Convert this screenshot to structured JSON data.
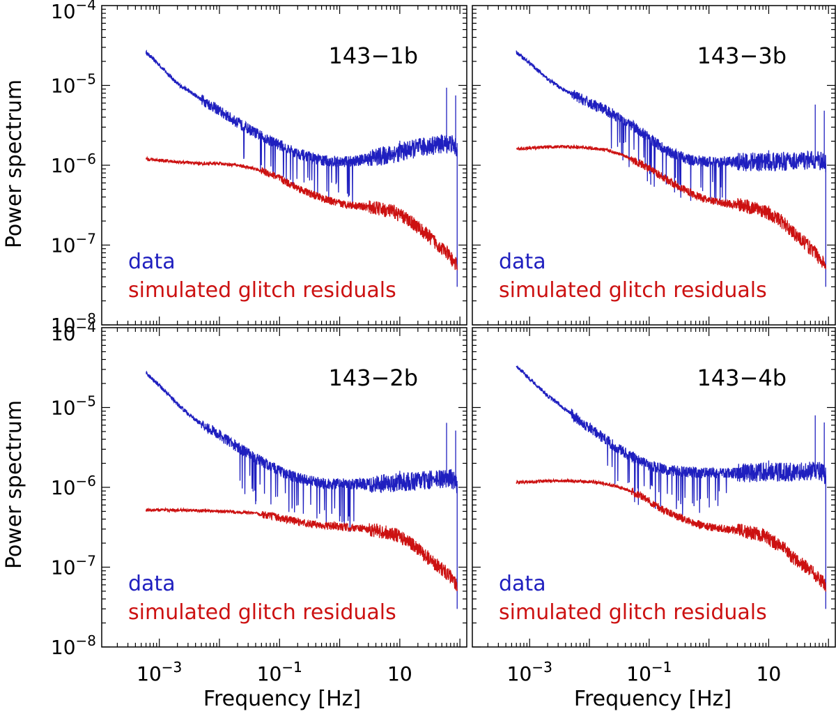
{
  "figure": {
    "ylabel": "Power spectrum",
    "xlabel": "Frequency [Hz]"
  },
  "colors": {
    "data": "#1f1fbf",
    "glitch": "#cc1111",
    "axes": "#000000"
  },
  "chart_data": [
    {
      "type": "line",
      "panel_label": "143−1b",
      "xscale": "log",
      "yscale": "log",
      "xlim": [
        0.00011,
        130
      ],
      "ylim": [
        1e-08,
        0.0001
      ],
      "xticks": [
        "10−3",
        "10−1",
        "10"
      ],
      "yticks": [
        "10−8",
        "10−7",
        "10−6",
        "10−5",
        "10−4"
      ],
      "legend_position": "bottom-left",
      "series": [
        {
          "name": "data",
          "color": "#1f1fbf",
          "x": [
            0.0006,
            0.001,
            0.002,
            0.004,
            0.01,
            0.02,
            0.05,
            0.1,
            0.2,
            0.5,
            1,
            2,
            5,
            10,
            20,
            40,
            70,
            90
          ],
          "y": [
            2.6e-05,
            1.8e-05,
            1.05e-05,
            7.5e-06,
            4.8e-06,
            3.4e-06,
            2.3e-06,
            1.8e-06,
            1.4e-06,
            1.15e-06,
            1.1e-06,
            1.15e-06,
            1.3e-06,
            1.45e-06,
            1.65e-06,
            1.8e-06,
            1.9e-06,
            1.6e-06
          ]
        },
        {
          "name": "simulated glitch residuals",
          "color": "#cc1111",
          "x": [
            0.0006,
            0.002,
            0.005,
            0.01,
            0.02,
            0.04,
            0.08,
            0.15,
            0.3,
            0.6,
            1,
            2,
            4,
            8,
            15,
            30,
            60,
            90
          ],
          "y": [
            1.2e-06,
            1.1e-06,
            1.05e-06,
            1.05e-06,
            1e-06,
            9e-07,
            7.5e-07,
            5.8e-07,
            4.5e-07,
            3.7e-07,
            3.3e-07,
            3.1e-07,
            2.9e-07,
            2.6e-07,
            2e-07,
            1.3e-07,
            8e-08,
            5.5e-08
          ]
        }
      ]
    },
    {
      "type": "line",
      "panel_label": "143−3b",
      "xscale": "log",
      "yscale": "log",
      "xlim": [
        0.00011,
        130
      ],
      "ylim": [
        1e-08,
        0.0001
      ],
      "xticks": [
        "10−3",
        "10−1",
        "10"
      ],
      "yticks": [],
      "legend_position": "bottom-left",
      "series": [
        {
          "name": "data",
          "color": "#1f1fbf",
          "x": [
            0.0006,
            0.001,
            0.002,
            0.004,
            0.01,
            0.02,
            0.05,
            0.1,
            0.2,
            0.5,
            1,
            2,
            5,
            10,
            20,
            40,
            70,
            90
          ],
          "y": [
            2.6e-05,
            1.9e-05,
            1.2e-05,
            8.5e-06,
            6e-06,
            4.8e-06,
            3.2e-06,
            2.2e-06,
            1.5e-06,
            1.15e-06,
            1.1e-06,
            1.1e-06,
            1.1e-06,
            1.1e-06,
            1.12e-06,
            1.15e-06,
            1.15e-06,
            1.05e-06
          ]
        },
        {
          "name": "simulated glitch residuals",
          "color": "#cc1111",
          "x": [
            0.0006,
            0.002,
            0.005,
            0.01,
            0.02,
            0.04,
            0.08,
            0.15,
            0.3,
            0.6,
            1,
            2,
            4,
            8,
            15,
            30,
            60,
            90
          ],
          "y": [
            1.6e-06,
            1.7e-06,
            1.7e-06,
            1.65e-06,
            1.55e-06,
            1.3e-06,
            1e-06,
            7.5e-07,
            5.5e-07,
            4.2e-07,
            3.6e-07,
            3.3e-07,
            3.1e-07,
            2.7e-07,
            2.1e-07,
            1.3e-07,
            8e-08,
            5.5e-08
          ]
        }
      ]
    },
    {
      "type": "line",
      "panel_label": "143−2b",
      "xscale": "log",
      "yscale": "log",
      "xlim": [
        0.00011,
        130
      ],
      "ylim": [
        1e-08,
        0.0001
      ],
      "xticks": [
        "10−3",
        "10−1",
        "10"
      ],
      "yticks": [
        "10−8",
        "10−7",
        "10−6",
        "10−5",
        "10−4"
      ],
      "legend_position": "bottom-left",
      "series": [
        {
          "name": "data",
          "color": "#1f1fbf",
          "x": [
            0.0006,
            0.001,
            0.002,
            0.004,
            0.01,
            0.02,
            0.05,
            0.1,
            0.2,
            0.5,
            1,
            2,
            5,
            10,
            20,
            40,
            70,
            90
          ],
          "y": [
            2.7e-05,
            1.9e-05,
            1.1e-05,
            7e-06,
            4.5e-06,
            3.2e-06,
            2.1e-06,
            1.6e-06,
            1.3e-06,
            1.12e-06,
            1.1e-06,
            1.1e-06,
            1.12e-06,
            1.15e-06,
            1.2e-06,
            1.25e-06,
            1.3e-06,
            1.1e-06
          ]
        },
        {
          "name": "simulated glitch residuals",
          "color": "#cc1111",
          "x": [
            0.0006,
            0.002,
            0.005,
            0.01,
            0.02,
            0.04,
            0.08,
            0.15,
            0.3,
            0.6,
            1,
            2,
            4,
            8,
            15,
            30,
            60,
            90
          ],
          "y": [
            5.2e-07,
            5.2e-07,
            5.1e-07,
            5e-07,
            4.9e-07,
            4.7e-07,
            4.3e-07,
            3.9e-07,
            3.5e-07,
            3.3e-07,
            3.2e-07,
            3.1e-07,
            2.9e-07,
            2.6e-07,
            2e-07,
            1.3e-07,
            8.5e-08,
            6e-08
          ]
        }
      ]
    },
    {
      "type": "line",
      "panel_label": "143−4b",
      "xscale": "log",
      "yscale": "log",
      "xlim": [
        0.00011,
        130
      ],
      "ylim": [
        1e-08,
        0.0001
      ],
      "xticks": [
        "10−3",
        "10−1",
        "10"
      ],
      "yticks": [],
      "legend_position": "bottom-left",
      "series": [
        {
          "name": "data",
          "color": "#1f1fbf",
          "x": [
            0.0006,
            0.001,
            0.002,
            0.004,
            0.01,
            0.02,
            0.05,
            0.1,
            0.2,
            0.5,
            1,
            2,
            5,
            10,
            20,
            40,
            70,
            90
          ],
          "y": [
            3.3e-05,
            2.3e-05,
            1.4e-05,
            9.5e-06,
            5.5e-06,
            3.8e-06,
            2.4e-06,
            1.9e-06,
            1.65e-06,
            1.55e-06,
            1.5e-06,
            1.5e-06,
            1.52e-06,
            1.55e-06,
            1.55e-06,
            1.58e-06,
            1.6e-06,
            1.4e-06
          ]
        },
        {
          "name": "simulated glitch residuals",
          "color": "#cc1111",
          "x": [
            0.0006,
            0.002,
            0.005,
            0.01,
            0.02,
            0.04,
            0.08,
            0.15,
            0.3,
            0.6,
            1,
            2,
            4,
            8,
            15,
            30,
            60,
            90
          ],
          "y": [
            1.15e-06,
            1.2e-06,
            1.2e-06,
            1.18e-06,
            1.1e-06,
            9.5e-07,
            7.5e-07,
            5.5e-07,
            4.3e-07,
            3.5e-07,
            3.2e-07,
            3e-07,
            2.8e-07,
            2.5e-07,
            1.9e-07,
            1.2e-07,
            8e-08,
            6e-08
          ]
        }
      ]
    }
  ]
}
